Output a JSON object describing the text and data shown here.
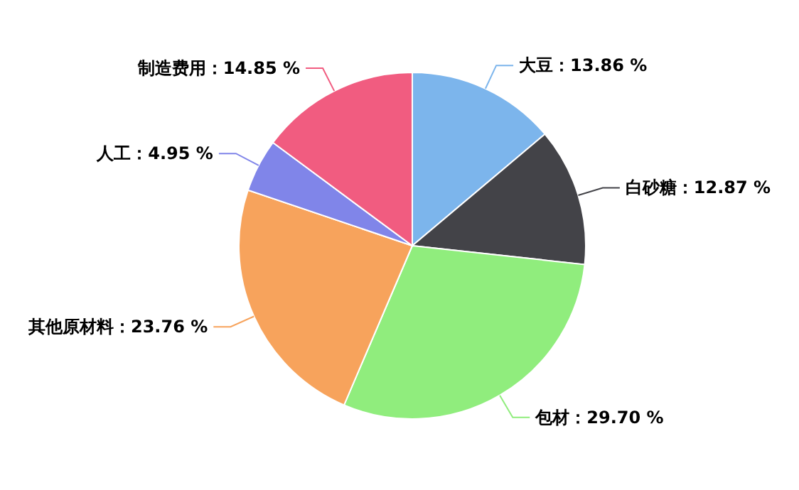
{
  "chart_data": {
    "type": "pie",
    "categories": [
      "大豆",
      "白砂糖",
      "包材",
      "其他原材料",
      "人工",
      "制造费用"
    ],
    "values": [
      13.86,
      12.87,
      29.7,
      23.76,
      4.95,
      14.85
    ],
    "colors": [
      "#7cb5ec",
      "#434348",
      "#90ed7d",
      "#f7a35c",
      "#8085e9",
      "#f15c80"
    ],
    "value_labels": [
      "13.86 %",
      "12.87 %",
      "29.70 %",
      "23.76 %",
      "4.95 %",
      "14.85 %"
    ]
  }
}
